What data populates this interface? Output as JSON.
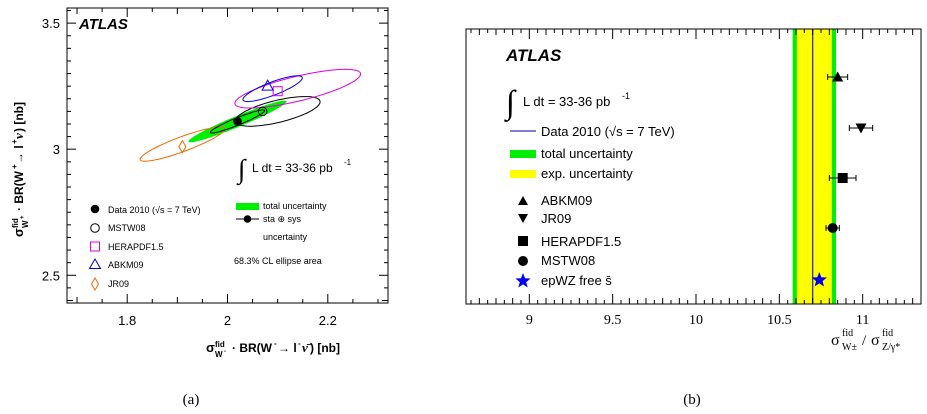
{
  "chart_data": [
    {
      "panel": "(a)",
      "type": "scatter",
      "experiment_label": "ATLAS",
      "lumi_label": "∫L dt = 33-36 pb⁻¹",
      "xlabel": "σ_W⁻^fid · BR(W⁻→ l⁻ν̄) [nb]",
      "ylabel": "σ_W⁺^fid · BR(W⁺→ l⁺ν) [nb]",
      "xlim": [
        1.68,
        2.32
      ],
      "ylim": [
        2.39,
        3.56
      ],
      "x_ticks": [
        1.8,
        2,
        2.2
      ],
      "y_ticks": [
        2.5,
        3,
        3.5
      ],
      "x_tick_labels": [
        "1.8",
        "2",
        "2.2"
      ],
      "y_tick_labels": [
        "2.5",
        "3",
        "3.5"
      ],
      "points": [
        {
          "name": "Data 2010 (√s = 7 TeV)",
          "x": 2.02,
          "y": 3.11,
          "marker": "filled-circle",
          "color": "#000000"
        },
        {
          "name": "MSTW08",
          "x": 2.07,
          "y": 3.15,
          "marker": "open-circle",
          "color": "#000000"
        },
        {
          "name": "HERAPDF1.5",
          "x": 2.1,
          "y": 3.23,
          "marker": "open-square",
          "color": "#e000e0"
        },
        {
          "name": "ABKM09",
          "x": 2.08,
          "y": 3.25,
          "marker": "open-triangle",
          "color": "#0000e0"
        },
        {
          "name": "JR09",
          "x": 1.91,
          "y": 3.01,
          "marker": "open-diamond",
          "color": "#ee6a00"
        }
      ],
      "ellipses": [
        {
          "name": "total uncertainty",
          "cx": 2.02,
          "cy": 3.11,
          "a": 0.127,
          "b": 0.018,
          "angle_deg": 40,
          "fill": "#00ee00"
        },
        {
          "name": "sta ⊕ sys uncertainty",
          "cx": 2.02,
          "cy": 3.11,
          "a": 0.07,
          "b": 0.012,
          "angle_deg": 40,
          "stroke": "#000000"
        },
        {
          "name": "MSTW08",
          "cx": 2.1,
          "cy": 3.15,
          "a": 0.095,
          "b": 0.04,
          "angle_deg": 30,
          "stroke": "#000000"
        },
        {
          "name": "HERAPDF1.5",
          "cx": 2.14,
          "cy": 3.24,
          "a": 0.14,
          "b": 0.045,
          "angle_deg": 28,
          "stroke": "#e000e0"
        },
        {
          "name": "ABKM09",
          "cx": 2.09,
          "cy": 3.24,
          "a": 0.075,
          "b": 0.022,
          "angle_deg": 40,
          "stroke": "#0000e0"
        },
        {
          "name": "JR09",
          "cx": 1.91,
          "cy": 3.02,
          "a": 0.105,
          "b": 0.025,
          "angle_deg": 38,
          "stroke": "#ee6a00"
        }
      ],
      "legend_left": [
        "Data 2010 (√s = 7 TeV)",
        "MSTW08",
        "HERAPDF1.5",
        "ABKM09",
        "JR09"
      ],
      "legend_right": [
        "total uncertainty",
        "sta ⊕ sys",
        "uncertainty"
      ],
      "ellipse_note": "68.3% CL ellipse area",
      "caption": "(a)"
    },
    {
      "panel": "(b)",
      "type": "scatter",
      "experiment_label": "ATLAS",
      "lumi_label": "∫L dt = 33-36 pb⁻¹",
      "xlabel": "σ_W±^fid / σ_Z/γ*^fid",
      "ylabel": "",
      "xlim": [
        8.62,
        11.35
      ],
      "x_ticks": [
        9,
        9.5,
        10,
        10.5,
        11
      ],
      "x_tick_labels": [
        "9",
        "9.5",
        "10",
        "10.5",
        "11"
      ],
      "data_value": 10.7,
      "total_uncertainty_band": [
        10.58,
        10.84
      ],
      "exp_uncertainty_band": [
        10.605,
        10.815
      ],
      "predictions": [
        {
          "name": "ABKM09",
          "x": 10.85,
          "err": 0.06,
          "marker": "triangle-up",
          "color": "#000000"
        },
        {
          "name": "JR09",
          "x": 10.99,
          "err": 0.07,
          "marker": "triangle-down",
          "color": "#000000"
        },
        {
          "name": "HERAPDF1.5",
          "x": 10.88,
          "err": 0.08,
          "marker": "square",
          "color": "#000000"
        },
        {
          "name": "MSTW08",
          "x": 10.82,
          "err": 0.04,
          "marker": "circle",
          "color": "#000000"
        },
        {
          "name": "epWZ free s̄",
          "x": 10.74,
          "err": 0,
          "marker": "star",
          "color": "#0000ee"
        }
      ],
      "legend": [
        "Data 2010 (√s = 7 TeV)",
        "total uncertainty",
        "exp. uncertainty",
        "ABKM09",
        "JR09",
        "HERAPDF1.5",
        "MSTW08",
        "epWZ free s̄"
      ],
      "caption": "(b)"
    }
  ]
}
